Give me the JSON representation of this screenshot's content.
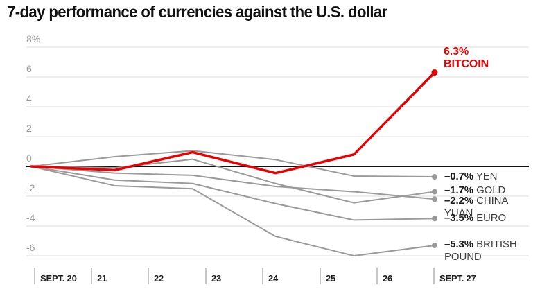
{
  "title": "7-day performance of currencies against the U.S. dollar",
  "chart_data": {
    "type": "line",
    "x_axis": {
      "tick_labels": [
        "SEPT. 20",
        "21",
        "22",
        "23",
        "24",
        "25",
        "26",
        "SEPT. 27"
      ]
    },
    "y_axis": {
      "tick_labels": [
        "8%",
        "6",
        "4",
        "2",
        "0",
        "-2",
        "-4",
        "-6"
      ],
      "tick_values": [
        8,
        6,
        4,
        2,
        0,
        -2,
        -4,
        -6
      ],
      "unit": "percent"
    },
    "x_days": [
      0,
      1.45,
      2.8,
      4.24,
      5.6,
      7
    ],
    "series": [
      {
        "id": "yen",
        "name": "YEN",
        "label_value": "–0.7%",
        "end_value": -0.7,
        "values": [
          0,
          0.65,
          1.05,
          0.45,
          -0.65,
          -0.7
        ]
      },
      {
        "id": "gold",
        "name": "GOLD",
        "label_value": "–1.7%",
        "end_value": -1.7,
        "values": [
          0,
          -0.1,
          0.48,
          -1.15,
          -2.45,
          -1.7
        ]
      },
      {
        "id": "yuan",
        "name": "CHINA YUAN",
        "label_value": "–2.2%",
        "end_value": -2.2,
        "values": [
          0,
          -0.45,
          -0.6,
          -1.35,
          -1.7,
          -2.2
        ]
      },
      {
        "id": "euro",
        "name": "EURO",
        "label_value": "–3.5%",
        "end_value": -3.5,
        "values": [
          0,
          -0.92,
          -1.15,
          -2.5,
          -3.6,
          -3.5
        ]
      },
      {
        "id": "pound",
        "name": "BRITISH POUND",
        "label_value": "–5.3%",
        "end_value": -5.3,
        "values": [
          0,
          -1.3,
          -1.5,
          -4.7,
          -6.0,
          -5.3
        ]
      },
      {
        "id": "bitcoin",
        "name": "BITCOIN",
        "label_value": "6.3%",
        "end_value": 6.3,
        "values": [
          0,
          -0.25,
          0.95,
          -0.45,
          0.8,
          6.3
        ],
        "emphasis": true
      }
    ],
    "colors": {
      "bitcoin_red": "#e90000",
      "line_gray": "#9a9a9a",
      "grid": "#dcdcdc",
      "zero_line": "#111111",
      "tick": "#a8a8a8"
    },
    "legend_position": "right-of-line-ends",
    "grid": "horizontal-only"
  }
}
